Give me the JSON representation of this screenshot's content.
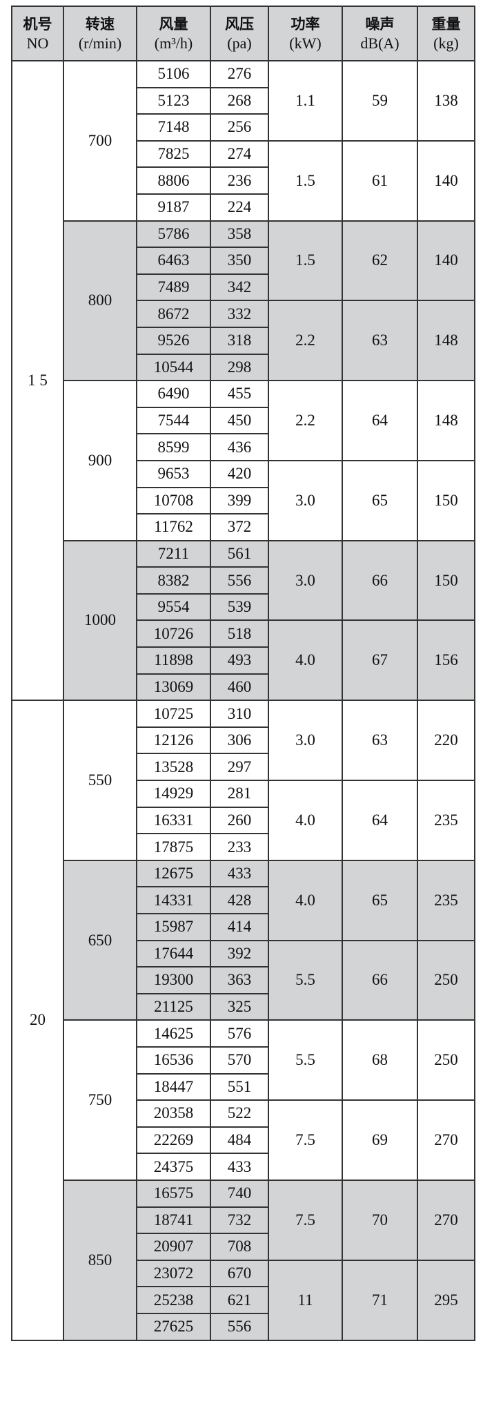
{
  "headers": [
    {
      "zh": "机号",
      "unit": "NO"
    },
    {
      "zh": "转速",
      "unit": "(r/min)"
    },
    {
      "zh": "风量",
      "unit": "(m³/h)"
    },
    {
      "zh": "风压",
      "unit": "(pa)"
    },
    {
      "zh": "功率",
      "unit": "(kW)"
    },
    {
      "zh": "噪声",
      "unit": "dB(A)"
    },
    {
      "zh": "重量",
      "unit": "(kg)"
    }
  ],
  "models": [
    {
      "no": "1 5",
      "speeds": [
        {
          "rpm": "700",
          "shaded": false,
          "groups": [
            {
              "power": "1.1",
              "noise": "59",
              "weight": "138",
              "rows": [
                [
                  "5106",
                  "276"
                ],
                [
                  "5123",
                  "268"
                ],
                [
                  "7148",
                  "256"
                ]
              ]
            },
            {
              "power": "1.5",
              "noise": "61",
              "weight": "140",
              "rows": [
                [
                  "7825",
                  "274"
                ],
                [
                  "8806",
                  "236"
                ],
                [
                  "9187",
                  "224"
                ]
              ]
            }
          ]
        },
        {
          "rpm": "800",
          "shaded": true,
          "groups": [
            {
              "power": "1.5",
              "noise": "62",
              "weight": "140",
              "rows": [
                [
                  "5786",
                  "358"
                ],
                [
                  "6463",
                  "350"
                ],
                [
                  "7489",
                  "342"
                ]
              ]
            },
            {
              "power": "2.2",
              "noise": "63",
              "weight": "148",
              "rows": [
                [
                  "8672",
                  "332"
                ],
                [
                  "9526",
                  "318"
                ],
                [
                  "10544",
                  "298"
                ]
              ]
            }
          ]
        },
        {
          "rpm": "900",
          "shaded": false,
          "groups": [
            {
              "power": "2.2",
              "noise": "64",
              "weight": "148",
              "rows": [
                [
                  "6490",
                  "455"
                ],
                [
                  "7544",
                  "450"
                ],
                [
                  "8599",
                  "436"
                ]
              ]
            },
            {
              "power": "3.0",
              "noise": "65",
              "weight": "150",
              "rows": [
                [
                  "9653",
                  "420"
                ],
                [
                  "10708",
                  "399"
                ],
                [
                  "11762",
                  "372"
                ]
              ]
            }
          ]
        },
        {
          "rpm": "1000",
          "shaded": true,
          "groups": [
            {
              "power": "3.0",
              "noise": "66",
              "weight": "150",
              "rows": [
                [
                  "7211",
                  "561"
                ],
                [
                  "8382",
                  "556"
                ],
                [
                  "9554",
                  "539"
                ]
              ]
            },
            {
              "power": "4.0",
              "noise": "67",
              "weight": "156",
              "rows": [
                [
                  "10726",
                  "518"
                ],
                [
                  "11898",
                  "493"
                ],
                [
                  "13069",
                  "460"
                ]
              ]
            }
          ]
        }
      ]
    },
    {
      "no": "20",
      "speeds": [
        {
          "rpm": "550",
          "shaded": false,
          "groups": [
            {
              "power": "3.0",
              "noise": "63",
              "weight": "220",
              "rows": [
                [
                  "10725",
                  "310"
                ],
                [
                  "12126",
                  "306"
                ],
                [
                  "13528",
                  "297"
                ]
              ]
            },
            {
              "power": "4.0",
              "noise": "64",
              "weight": "235",
              "rows": [
                [
                  "14929",
                  "281"
                ],
                [
                  "16331",
                  "260"
                ],
                [
                  "17875",
                  "233"
                ]
              ]
            }
          ]
        },
        {
          "rpm": "650",
          "shaded": true,
          "groups": [
            {
              "power": "4.0",
              "noise": "65",
              "weight": "235",
              "rows": [
                [
                  "12675",
                  "433"
                ],
                [
                  "14331",
                  "428"
                ],
                [
                  "15987",
                  "414"
                ]
              ]
            },
            {
              "power": "5.5",
              "noise": "66",
              "weight": "250",
              "rows": [
                [
                  "17644",
                  "392"
                ],
                [
                  "19300",
                  "363"
                ],
                [
                  "21125",
                  "325"
                ]
              ]
            }
          ]
        },
        {
          "rpm": "750",
          "shaded": false,
          "groups": [
            {
              "power": "5.5",
              "noise": "68",
              "weight": "250",
              "rows": [
                [
                  "14625",
                  "576"
                ],
                [
                  "16536",
                  "570"
                ],
                [
                  "18447",
                  "551"
                ]
              ]
            },
            {
              "power": "7.5",
              "noise": "69",
              "weight": "270",
              "rows": [
                [
                  "20358",
                  "522"
                ],
                [
                  "22269",
                  "484"
                ],
                [
                  "24375",
                  "433"
                ]
              ]
            }
          ]
        },
        {
          "rpm": "850",
          "shaded": true,
          "groups": [
            {
              "power": "7.5",
              "noise": "70",
              "weight": "270",
              "rows": [
                [
                  "16575",
                  "740"
                ],
                [
                  "18741",
                  "732"
                ],
                [
                  "20907",
                  "708"
                ]
              ]
            },
            {
              "power": "11",
              "noise": "71",
              "weight": "295",
              "rows": [
                [
                  "23072",
                  "670"
                ],
                [
                  "25238",
                  "621"
                ],
                [
                  "27625",
                  "556"
                ]
              ]
            }
          ]
        }
      ]
    }
  ]
}
